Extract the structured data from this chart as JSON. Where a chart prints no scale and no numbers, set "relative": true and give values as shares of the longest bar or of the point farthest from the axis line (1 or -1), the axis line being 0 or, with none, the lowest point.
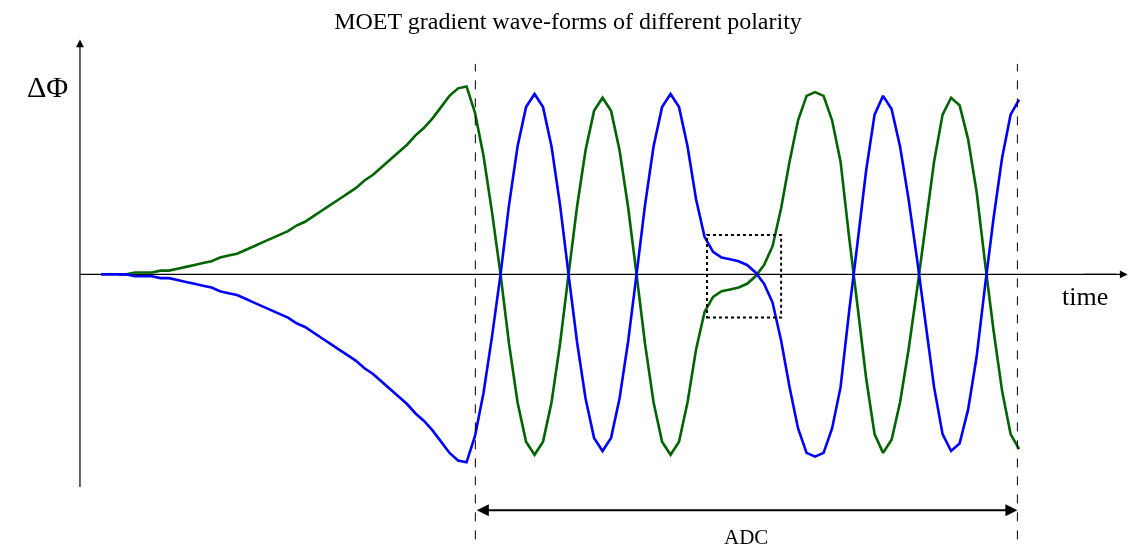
{
  "chart_data": {
    "type": "line",
    "title": "MOET gradient wave-forms of different polarity",
    "xlabel": "time",
    "ylabel": "ΔΦ",
    "relative": true,
    "categories": [
      null,
      null,
      null,
      null,
      null,
      null,
      null,
      null,
      null,
      null,
      null,
      null,
      null,
      null,
      null,
      null,
      null,
      null,
      null,
      null,
      null,
      null,
      null,
      null,
      null,
      null,
      null,
      null,
      null,
      null,
      null,
      null,
      null,
      null,
      null,
      null,
      null,
      null,
      null,
      null,
      null,
      null,
      null,
      null,
      null,
      null,
      null,
      null,
      null,
      null,
      null,
      null,
      null,
      null,
      null,
      null,
      null,
      null,
      null,
      null,
      null,
      null,
      null,
      null,
      null,
      null,
      null,
      null,
      null,
      null,
      null,
      null,
      null,
      null,
      null,
      null,
      null,
      null,
      null,
      null,
      null,
      null,
      null,
      null,
      null,
      null,
      null,
      null,
      null,
      null,
      null,
      null,
      null,
      null,
      null,
      null,
      null,
      null,
      null,
      null,
      null,
      null,
      null,
      null,
      null,
      null,
      null,
      null,
      null
    ],
    "series": [
      {
        "color": "#006400",
        "values": [
          null,
          null,
          0,
          0,
          0.01,
          0.01,
          0.01,
          0.02,
          0.02,
          0.03,
          0.04,
          0.05,
          0.06,
          0.07,
          0.09,
          0.1,
          0.11,
          0.13,
          0.15,
          0.17,
          0.19,
          0.21,
          0.23,
          0.26,
          0.28,
          0.31,
          0.34,
          0.37,
          0.4,
          0.43,
          0.46,
          0.5,
          0.53,
          0.57,
          0.61,
          0.65,
          0.69,
          0.74,
          0.78,
          0.83,
          0.89,
          0.95,
          0.99,
          1,
          0.86,
          0.63,
          0.33,
          0,
          -0.37,
          -0.68,
          -0.89,
          -0.96,
          -0.89,
          -0.68,
          -0.37,
          0,
          0.36,
          0.66,
          0.87,
          0.94,
          0.87,
          0.66,
          0.36,
          0,
          -0.37,
          -0.68,
          -0.89,
          -0.96,
          -0.89,
          -0.68,
          -0.4,
          -0.2,
          -0.12,
          -0.09,
          -0.08,
          -0.07,
          -0.05,
          -0.01,
          0.05,
          0.15,
          0.35,
          0.6,
          0.82,
          0.95,
          0.97,
          0.95,
          0.82,
          0.6,
          0.2,
          -0.17,
          -0.55,
          -0.85,
          -0.95,
          -0.88,
          -0.68,
          -0.4,
          -0.08,
          0.26,
          0.6,
          0.85,
          0.94,
          0.9,
          0.72,
          0.44,
          0.06,
          -0.3,
          -0.62,
          -0.85,
          -0.93
        ]
      },
      {
        "color": "#0000ff",
        "values": [
          0,
          0,
          0,
          0,
          -0.01,
          -0.01,
          -0.01,
          -0.02,
          -0.02,
          -0.03,
          -0.04,
          -0.05,
          -0.06,
          -0.07,
          -0.09,
          -0.1,
          -0.11,
          -0.13,
          -0.15,
          -0.17,
          -0.19,
          -0.21,
          -0.23,
          -0.26,
          -0.28,
          -0.31,
          -0.34,
          -0.37,
          -0.4,
          -0.43,
          -0.46,
          -0.5,
          -0.53,
          -0.57,
          -0.61,
          -0.65,
          -0.69,
          -0.74,
          -0.78,
          -0.83,
          -0.89,
          -0.95,
          -0.99,
          -1,
          -0.86,
          -0.63,
          -0.33,
          0,
          0.37,
          0.68,
          0.89,
          0.96,
          0.89,
          0.68,
          0.37,
          0,
          -0.36,
          -0.66,
          -0.87,
          -0.94,
          -0.87,
          -0.66,
          -0.36,
          0,
          0.37,
          0.68,
          0.89,
          0.96,
          0.89,
          0.68,
          0.4,
          0.2,
          0.12,
          0.09,
          0.08,
          0.07,
          0.05,
          0.01,
          -0.05,
          -0.15,
          -0.35,
          -0.6,
          -0.82,
          -0.95,
          -0.97,
          -0.95,
          -0.82,
          -0.6,
          -0.2,
          0.17,
          0.55,
          0.85,
          0.95,
          0.88,
          0.68,
          0.4,
          0.08,
          -0.26,
          -0.6,
          -0.85,
          -0.94,
          -0.9,
          -0.72,
          -0.44,
          -0.06,
          0.3,
          0.62,
          0.85,
          0.93
        ]
      }
    ],
    "annotations": [
      "ADC"
    ]
  }
}
